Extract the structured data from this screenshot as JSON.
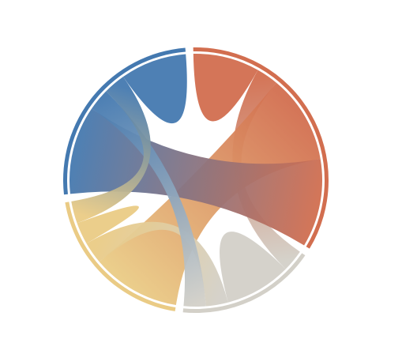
{
  "chart_data": {
    "type": "chord",
    "title": "",
    "groups": [
      {
        "color": "#d26e4f"
      },
      {
        "color": "#d3d0c8"
      },
      {
        "color": "#eacb85"
      },
      {
        "color": "#4479b0"
      }
    ],
    "matrix": [
      [
        3,
        1,
        4,
        4
      ],
      [
        1,
        3,
        1,
        1
      ],
      [
        4,
        1,
        1,
        1
      ],
      [
        4,
        1,
        1,
        3
      ]
    ],
    "legend": "none"
  }
}
